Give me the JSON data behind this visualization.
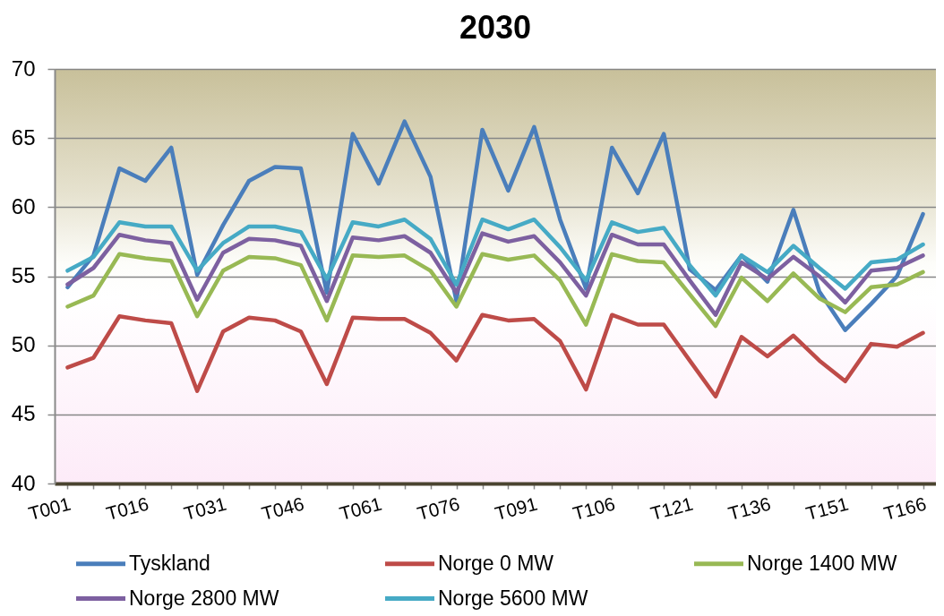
{
  "chart_data": {
    "type": "line",
    "title": "2030",
    "categories": [
      "T001",
      null,
      null,
      "T016",
      null,
      null,
      "T031",
      null,
      null,
      "T046",
      null,
      null,
      "T061",
      null,
      null,
      "T076",
      null,
      null,
      "T091",
      null,
      null,
      "T106",
      null,
      null,
      "T121",
      null,
      null,
      "T136",
      null,
      null,
      "T151",
      null,
      null,
      "T166"
    ],
    "series": [
      {
        "name": "Tyskland",
        "color": "#4a7ebb",
        "values": [
          54.2,
          56.5,
          62.8,
          61.9,
          64.3,
          55.1,
          58.7,
          61.9,
          62.9,
          62.8,
          53.8,
          65.3,
          61.7,
          66.2,
          62.2,
          53.2,
          65.6,
          61.2,
          65.8,
          59.1,
          54.1,
          64.3,
          61.0,
          65.3,
          55.5,
          54.0,
          56.5,
          54.6,
          59.8,
          53.9,
          51.1,
          53.0,
          55.0,
          59.5
        ]
      },
      {
        "name": "Norge 0 MW",
        "color": "#be4b48",
        "values": [
          48.4,
          49.1,
          52.1,
          51.8,
          51.6,
          46.7,
          51.0,
          52.0,
          51.8,
          51.0,
          47.2,
          52.0,
          51.9,
          51.9,
          50.9,
          48.9,
          52.2,
          51.8,
          51.9,
          50.3,
          46.8,
          52.2,
          51.5,
          51.5,
          48.9,
          46.3,
          50.6,
          49.2,
          50.7,
          48.9,
          47.4,
          50.1,
          49.9,
          50.9
        ]
      },
      {
        "name": "Norge 1400 MW",
        "color": "#98b954",
        "values": [
          52.8,
          53.6,
          56.6,
          56.3,
          56.1,
          52.1,
          55.4,
          56.4,
          56.3,
          55.8,
          51.8,
          56.5,
          56.4,
          56.5,
          55.4,
          52.8,
          56.6,
          56.2,
          56.5,
          54.7,
          51.5,
          56.6,
          56.1,
          56.0,
          53.7,
          51.4,
          54.9,
          53.2,
          55.2,
          53.4,
          52.4,
          54.2,
          54.4,
          55.3
        ]
      },
      {
        "name": "Norge 2800 MW",
        "color": "#7d60a0",
        "values": [
          54.4,
          55.6,
          58.0,
          57.6,
          57.4,
          53.3,
          56.7,
          57.7,
          57.6,
          57.2,
          53.2,
          57.8,
          57.6,
          57.9,
          56.7,
          53.8,
          58.1,
          57.5,
          57.9,
          56.0,
          53.6,
          58.0,
          57.3,
          57.3,
          54.7,
          52.2,
          56.0,
          54.8,
          56.4,
          55.0,
          53.1,
          55.4,
          55.6,
          56.5
        ]
      },
      {
        "name": "Norge 5600 MW",
        "color": "#46aac5",
        "values": [
          55.4,
          56.4,
          58.9,
          58.6,
          58.6,
          55.4,
          57.4,
          58.6,
          58.6,
          58.2,
          54.8,
          58.9,
          58.6,
          59.1,
          57.7,
          54.4,
          59.1,
          58.4,
          59.1,
          57.1,
          54.7,
          58.9,
          58.2,
          58.5,
          55.8,
          53.6,
          56.5,
          55.3,
          57.2,
          55.6,
          54.1,
          56.0,
          56.2,
          57.3
        ]
      }
    ],
    "ylim": [
      40,
      70
    ],
    "yticks": [
      40,
      45,
      50,
      55,
      60,
      65,
      70
    ],
    "grid": "y",
    "legend": "bottom",
    "line_style": "solid"
  }
}
